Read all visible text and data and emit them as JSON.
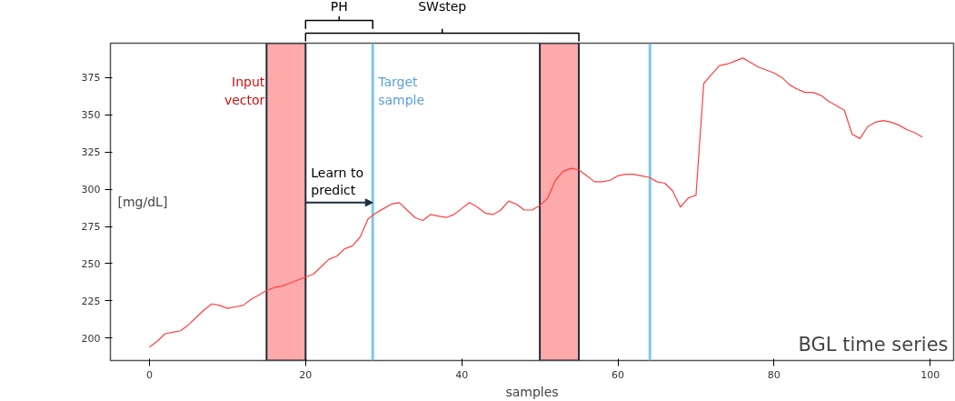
{
  "chart_data": {
    "type": "line",
    "xlabel": "samples",
    "ylabel": "[mg/dL]",
    "x": [
      0,
      1,
      2,
      3,
      4,
      5,
      6,
      7,
      8,
      9,
      10,
      11,
      12,
      13,
      14,
      15,
      16,
      17,
      18,
      19,
      20,
      21,
      22,
      23,
      24,
      25,
      26,
      27,
      28,
      29,
      30,
      31,
      32,
      33,
      34,
      35,
      36,
      37,
      38,
      39,
      40,
      41,
      42,
      43,
      44,
      45,
      46,
      47,
      48,
      49,
      50,
      51,
      52,
      53,
      54,
      55,
      56,
      57,
      58,
      59,
      60,
      61,
      62,
      63,
      64,
      65,
      66,
      67,
      68,
      69,
      70,
      71,
      72,
      73,
      74,
      75,
      76,
      77,
      78,
      79,
      80,
      81,
      82,
      83,
      84,
      85,
      86,
      87,
      88,
      89,
      90,
      91,
      92,
      93,
      94,
      95,
      96,
      97,
      98,
      99
    ],
    "series": [
      {
        "color": "#ff4040",
        "values": [
          194,
          198,
          203,
          204,
          205,
          209,
          214,
          219,
          223,
          222,
          220,
          221,
          222,
          226,
          229,
          232,
          234,
          235,
          237,
          239,
          241,
          243,
          248,
          253,
          255,
          260,
          262,
          268,
          280,
          284,
          287,
          290,
          291,
          286,
          281,
          279,
          283,
          282,
          281,
          283,
          287,
          291,
          288,
          284,
          283,
          286,
          292,
          290,
          286,
          286,
          289,
          294,
          306,
          312,
          314,
          313,
          309,
          305,
          305,
          306,
          309,
          310,
          310,
          309,
          308,
          305,
          304,
          299,
          288,
          294,
          296,
          371,
          377,
          383,
          384,
          386,
          388,
          385,
          382,
          380,
          378,
          375,
          370,
          367,
          365,
          365,
          363,
          359,
          356,
          353,
          337,
          334,
          342,
          345,
          346,
          345,
          343,
          340,
          338,
          335
        ]
      }
    ],
    "xlim": [
      -5,
      103
    ],
    "ylim": [
      185,
      398
    ],
    "xticks": [
      0,
      20,
      40,
      60,
      80,
      100
    ],
    "yticks": [
      200,
      225,
      250,
      275,
      300,
      325,
      350,
      375
    ],
    "bands": [
      {
        "axis": "x",
        "from": 15,
        "to": 20,
        "label": "Input\nvector",
        "color": "#ffaaaa"
      },
      {
        "axis": "x",
        "from": 50,
        "to": 55,
        "color": "#ffaaaa"
      }
    ],
    "ref_lines": [
      {
        "axis": "x",
        "value": 28.6,
        "label": "Target\nsample",
        "color": "#7ec8ea"
      },
      {
        "axis": "x",
        "value": 64.1,
        "color": "#7ec8ea"
      }
    ],
    "annotations": [
      "BGL time series",
      {
        "text": "Learn to\npredict",
        "x": 20,
        "y": 291
      },
      "PH",
      "SWstep"
    ],
    "grid": false,
    "line_style": "solid",
    "marker": "none"
  }
}
